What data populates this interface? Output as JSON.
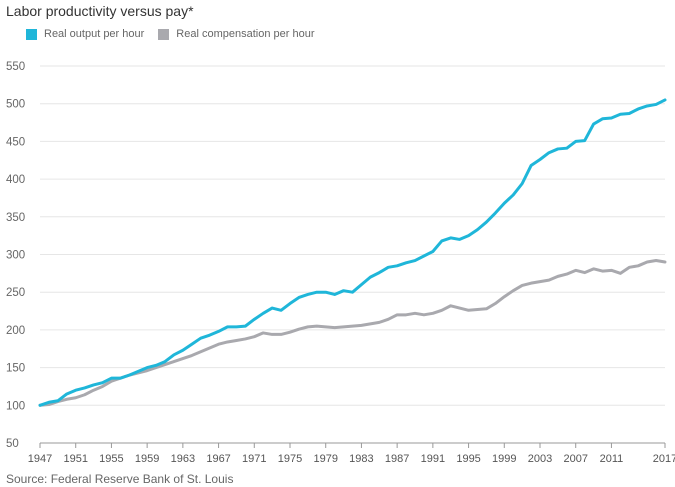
{
  "title": "Labor productivity versus pay*",
  "source": "Source: Federal Reserve Bank of St. Louis",
  "colors": {
    "output": "#1fb6d9",
    "compensation": "#a9a9ae",
    "grid": "#e6e6e6",
    "axis": "#999999"
  },
  "chart_data": {
    "type": "line",
    "title": "Labor productivity versus pay*",
    "xlabel": "",
    "ylabel": "",
    "xlim": [
      1947,
      2017
    ],
    "ylim": [
      50,
      550
    ],
    "yticks": [
      50,
      100,
      150,
      200,
      250,
      300,
      350,
      400,
      450,
      500,
      550
    ],
    "xticks": [
      1947,
      1951,
      1955,
      1959,
      1963,
      1967,
      1971,
      1975,
      1979,
      1983,
      1987,
      1991,
      1995,
      1999,
      2003,
      2007,
      2011,
      2017
    ],
    "grid": true,
    "legend_position": "top-left",
    "series": [
      {
        "name": "Real output per hour",
        "color": "#1fb6d9",
        "x": [
          1947,
          1948,
          1949,
          1950,
          1951,
          1952,
          1953,
          1954,
          1955,
          1956,
          1957,
          1958,
          1959,
          1960,
          1961,
          1962,
          1963,
          1964,
          1965,
          1966,
          1967,
          1968,
          1969,
          1970,
          1971,
          1972,
          1973,
          1974,
          1975,
          1976,
          1977,
          1978,
          1979,
          1980,
          1981,
          1982,
          1983,
          1984,
          1985,
          1986,
          1987,
          1988,
          1989,
          1990,
          1991,
          1992,
          1993,
          1994,
          1995,
          1996,
          1997,
          1998,
          1999,
          2000,
          2001,
          2002,
          2003,
          2004,
          2005,
          2006,
          2007,
          2008,
          2009,
          2010,
          2011,
          2012,
          2013,
          2014,
          2015,
          2016,
          2017
        ],
        "values": [
          100,
          104,
          106,
          115,
          120,
          123,
          127,
          130,
          136,
          136,
          140,
          145,
          150,
          153,
          158,
          167,
          173,
          181,
          189,
          193,
          198,
          204,
          204,
          205,
          214,
          222,
          229,
          226,
          235,
          243,
          247,
          250,
          250,
          247,
          252,
          250,
          260,
          270,
          276,
          283,
          285,
          289,
          292,
          298,
          304,
          318,
          322,
          320,
          325,
          333,
          343,
          355,
          368,
          379,
          394,
          418,
          426,
          435,
          440,
          441,
          450,
          451,
          473,
          480,
          481,
          486,
          487,
          493,
          497,
          499,
          505
        ]
      },
      {
        "name": "Real compensation per hour",
        "color": "#a9a9ae",
        "x": [
          1947,
          1948,
          1949,
          1950,
          1951,
          1952,
          1953,
          1954,
          1955,
          1956,
          1957,
          1958,
          1959,
          1960,
          1961,
          1962,
          1963,
          1964,
          1965,
          1966,
          1967,
          1968,
          1969,
          1970,
          1971,
          1972,
          1973,
          1974,
          1975,
          1976,
          1977,
          1978,
          1979,
          1980,
          1981,
          1982,
          1983,
          1984,
          1985,
          1986,
          1987,
          1988,
          1989,
          1990,
          1991,
          1992,
          1993,
          1994,
          1995,
          1996,
          1997,
          1998,
          1999,
          2000,
          2001,
          2002,
          2003,
          2004,
          2005,
          2006,
          2007,
          2008,
          2009,
          2010,
          2011,
          2012,
          2013,
          2014,
          2015,
          2016,
          2017
        ],
        "values": [
          100,
          101,
          105,
          108,
          110,
          114,
          120,
          125,
          132,
          136,
          140,
          143,
          146,
          150,
          154,
          158,
          162,
          166,
          171,
          176,
          181,
          184,
          186,
          188,
          191,
          196,
          194,
          194,
          197,
          201,
          204,
          205,
          204,
          203,
          204,
          205,
          206,
          208,
          210,
          214,
          220,
          220,
          222,
          220,
          222,
          226,
          232,
          229,
          226,
          227,
          228,
          235,
          244,
          252,
          259,
          262,
          264,
          266,
          271,
          274,
          279,
          276,
          281,
          278,
          279,
          275,
          283,
          285,
          290,
          292,
          290
        ]
      }
    ]
  }
}
